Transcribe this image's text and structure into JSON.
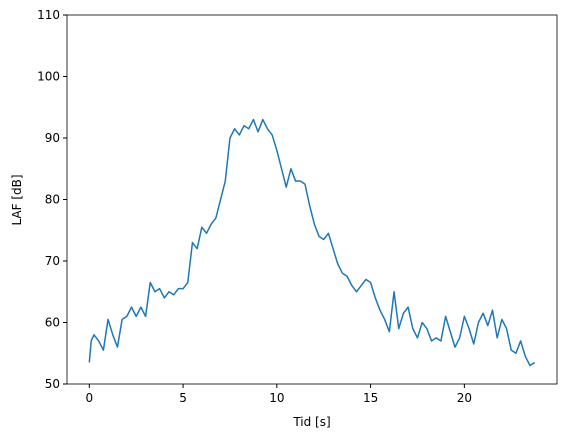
{
  "chart_data": {
    "type": "line",
    "xlabel": "Tid [s]",
    "ylabel": "LAF [dB]",
    "x": [
      0,
      0.1,
      0.25,
      0.5,
      0.75,
      1,
      1.25,
      1.5,
      1.75,
      2,
      2.25,
      2.5,
      2.75,
      3,
      3.25,
      3.5,
      3.75,
      4,
      4.25,
      4.5,
      4.75,
      5,
      5.25,
      5.5,
      5.75,
      6,
      6.25,
      6.5,
      6.75,
      7,
      7.25,
      7.5,
      7.75,
      8,
      8.25,
      8.5,
      8.75,
      9,
      9.25,
      9.5,
      9.75,
      10,
      10.25,
      10.5,
      10.75,
      11,
      11.25,
      11.5,
      11.75,
      12,
      12.25,
      12.5,
      12.75,
      13,
      13.25,
      13.5,
      13.75,
      14,
      14.25,
      14.5,
      14.75,
      15,
      15.25,
      15.5,
      15.75,
      16,
      16.25,
      16.5,
      16.75,
      17,
      17.25,
      17.5,
      17.75,
      18,
      18.25,
      18.5,
      18.75,
      19,
      19.25,
      19.5,
      19.75,
      20,
      20.25,
      20.5,
      20.75,
      21,
      21.25,
      21.5,
      21.75,
      22,
      22.25,
      22.5,
      22.75,
      23,
      23.25,
      23.5,
      23.75
    ],
    "series": [
      {
        "color": "#1f77b4",
        "values": [
          53.5,
          57,
          58,
          57,
          55.5,
          60.5,
          58,
          56,
          60.5,
          61,
          62.5,
          61,
          62.5,
          61,
          66.5,
          65,
          65.5,
          64,
          65,
          64.5,
          65.5,
          65.5,
          66.5,
          73,
          72,
          75.5,
          74.5,
          76,
          77,
          80,
          83,
          90,
          91.5,
          90.5,
          92,
          91.5,
          93,
          91,
          93,
          91.5,
          90.5,
          88,
          85,
          82,
          85,
          83,
          83,
          82.5,
          79,
          76,
          74,
          73.5,
          74.5,
          72,
          69.5,
          68,
          67.5,
          66,
          65,
          66,
          67,
          66.5,
          64,
          62,
          60.5,
          58.5,
          65,
          59,
          61.5,
          62.5,
          59,
          57.5,
          60,
          59,
          57,
          57.5,
          57,
          61,
          58.5,
          56,
          57.5,
          61,
          59,
          56.5,
          60,
          61.5,
          59.5,
          62,
          57.5,
          60.5,
          59,
          55.5,
          55,
          57,
          54.5,
          53,
          53.5
        ]
      }
    ],
    "xlim": [
      -1.19,
      24.94
    ],
    "ylim": [
      50,
      110
    ],
    "xticks": [
      0,
      5,
      10,
      15,
      20
    ],
    "yticks": [
      50,
      60,
      70,
      80,
      90,
      100,
      110
    ]
  }
}
